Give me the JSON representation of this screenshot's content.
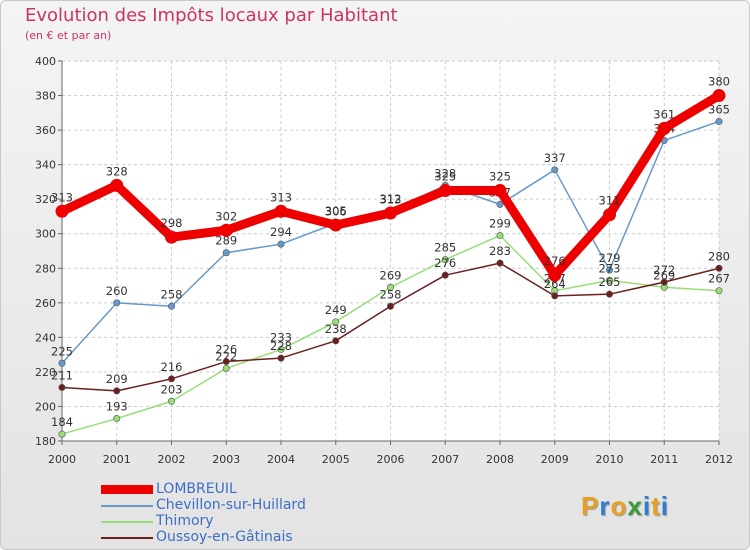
{
  "title": "Evolution des Impôts locaux par Habitant",
  "subtitle": "(en € et par an)",
  "logo": {
    "letters": [
      "P",
      "r",
      "o",
      "x",
      "i",
      "t",
      "i"
    ],
    "colors": [
      "#e8a020",
      "#2f7fd0",
      "#e8a020",
      "#3a9a3a",
      "#2f7fd0",
      "#e8a020",
      "#2f7fd0"
    ]
  },
  "chart_data": {
    "type": "line",
    "title": "Evolution des Impôts locaux par Habitant",
    "ylabel": "(en € et par an)",
    "x": [
      "2000",
      "2001",
      "2002",
      "2003",
      "2004",
      "2005",
      "2006",
      "2007",
      "2008",
      "2009",
      "2010",
      "2011",
      "2012"
    ],
    "ylim": [
      180,
      400
    ],
    "yticks": [
      180,
      200,
      220,
      240,
      260,
      280,
      300,
      320,
      340,
      360,
      380,
      400
    ],
    "legend_position": "bottom-left",
    "series": [
      {
        "name": "LOMBREUIL",
        "color": "#ee0000",
        "width": 9,
        "values": [
          313,
          328,
          298,
          302,
          313,
          305,
          312,
          325,
          325,
          276,
          311,
          361,
          380
        ]
      },
      {
        "name": "Chevillon-sur-Huillard",
        "color": "#6699cc",
        "width": 1.5,
        "values": [
          225,
          260,
          258,
          289,
          294,
          306,
          313,
          328,
          317,
          337,
          279,
          354,
          365
        ]
      },
      {
        "name": "Thimory",
        "color": "#99dd77",
        "width": 1.5,
        "values": [
          184,
          193,
          203,
          222,
          233,
          249,
          269,
          285,
          299,
          267,
          273,
          269,
          267
        ]
      },
      {
        "name": "Oussoy-en-Gâtinais",
        "color": "#6b2020",
        "width": 1.5,
        "values": [
          211,
          209,
          216,
          226,
          228,
          238,
          258,
          276,
          283,
          264,
          265,
          272,
          280
        ]
      }
    ]
  }
}
